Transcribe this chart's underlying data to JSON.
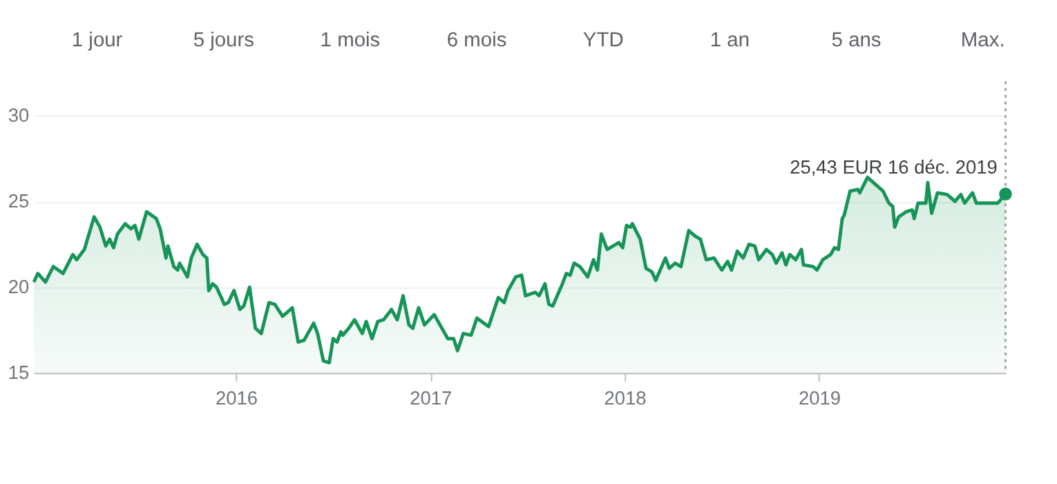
{
  "chart_data": {
    "type": "area",
    "x": [
      2014.96,
      2014.98,
      2015.02,
      2015.06,
      2015.11,
      2015.16,
      2015.18,
      2015.22,
      2015.27,
      2015.3,
      2015.33,
      2015.35,
      2015.37,
      2015.39,
      2015.43,
      2015.46,
      2015.48,
      2015.5,
      2015.54,
      2015.59,
      2015.61,
      2015.64,
      2015.65,
      2015.68,
      2015.7,
      2015.71,
      2015.75,
      2015.77,
      2015.8,
      2015.83,
      2015.85,
      2015.86,
      2015.88,
      2015.9,
      2015.94,
      2015.96,
      2015.99,
      2016.02,
      2016.04,
      2016.07,
      2016.1,
      2016.13,
      2016.17,
      2016.2,
      2016.24,
      2016.29,
      2016.32,
      2016.35,
      2016.4,
      2016.42,
      2016.45,
      2016.48,
      2016.5,
      2016.52,
      2016.54,
      2016.55,
      2016.58,
      2016.61,
      2016.65,
      2016.67,
      2016.7,
      2016.73,
      2016.76,
      2016.8,
      2016.83,
      2016.86,
      2016.89,
      2016.91,
      2016.94,
      2016.97,
      2017.02,
      2017.05,
      2017.09,
      2017.12,
      2017.14,
      2017.17,
      2017.21,
      2017.24,
      2017.3,
      2017.35,
      2017.38,
      2017.4,
      2017.44,
      2017.47,
      2017.49,
      2017.54,
      2017.56,
      2017.59,
      2017.61,
      2017.63,
      2017.68,
      2017.7,
      2017.72,
      2017.74,
      2017.77,
      2017.81,
      2017.84,
      2017.86,
      2017.88,
      2017.91,
      2017.97,
      2017.99,
      2018.01,
      2018.03,
      2018.04,
      2018.08,
      2018.11,
      2018.14,
      2018.16,
      2018.21,
      2018.23,
      2018.26,
      2018.29,
      2018.33,
      2018.36,
      2018.39,
      2018.42,
      2018.46,
      2018.5,
      2018.53,
      2018.55,
      2018.58,
      2018.61,
      2018.64,
      2018.67,
      2018.69,
      2018.73,
      2018.76,
      2018.78,
      2018.81,
      2018.83,
      2018.85,
      2018.88,
      2018.91,
      2018.92,
      2018.97,
      2018.99,
      2019.02,
      2019.06,
      2019.08,
      2019.1,
      2019.12,
      2019.13,
      2019.16,
      2019.2,
      2019.21,
      2019.25,
      2019.28,
      2019.31,
      2019.33,
      2019.36,
      2019.38,
      2019.39,
      2019.41,
      2019.45,
      2019.48,
      2019.49,
      2019.51,
      2019.55,
      2019.56,
      2019.58,
      2019.61,
      2019.66,
      2019.7,
      2019.73,
      2019.75,
      2019.79,
      2019.81,
      2019.84,
      2019.88,
      2019.92,
      2019.96
    ],
    "series": [
      {
        "color": "#179457",
        "values": [
          20.3,
          20.8,
          20.3,
          21.2,
          20.8,
          21.9,
          21.6,
          22.2,
          24.1,
          23.5,
          22.4,
          22.8,
          22.3,
          23.1,
          23.7,
          23.4,
          23.6,
          22.8,
          24.4,
          24.0,
          23.4,
          21.7,
          22.4,
          21.2,
          21.0,
          21.4,
          20.6,
          21.7,
          22.5,
          21.9,
          21.7,
          19.8,
          20.2,
          20.0,
          19.0,
          19.1,
          19.8,
          18.7,
          18.9,
          20.0,
          17.6,
          17.3,
          19.1,
          19.0,
          18.3,
          18.8,
          16.8,
          16.9,
          17.9,
          17.3,
          15.7,
          15.6,
          17.0,
          16.8,
          17.4,
          17.2,
          17.6,
          18.1,
          17.3,
          18.0,
          17.0,
          18.0,
          18.1,
          18.7,
          18.1,
          19.5,
          17.8,
          17.6,
          18.8,
          17.8,
          18.4,
          17.8,
          17.0,
          17.0,
          16.3,
          17.3,
          17.2,
          18.2,
          17.7,
          19.4,
          19.1,
          19.8,
          20.6,
          20.7,
          19.5,
          19.7,
          19.5,
          20.2,
          19.0,
          18.9,
          20.2,
          20.8,
          20.7,
          21.4,
          21.2,
          20.6,
          21.6,
          21.0,
          23.1,
          22.2,
          22.6,
          22.3,
          23.6,
          23.5,
          23.7,
          22.8,
          21.1,
          20.9,
          20.4,
          21.7,
          21.1,
          21.4,
          21.2,
          23.3,
          23.0,
          22.8,
          21.6,
          21.7,
          21.0,
          21.5,
          21.0,
          22.1,
          21.7,
          22.5,
          22.4,
          21.6,
          22.2,
          21.9,
          21.4,
          22.0,
          21.3,
          21.9,
          21.6,
          22.2,
          21.3,
          21.2,
          21.0,
          21.6,
          21.9,
          22.3,
          22.2,
          24.0,
          24.2,
          25.6,
          25.7,
          25.5,
          26.4,
          26.1,
          25.8,
          25.6,
          24.9,
          24.7,
          23.5,
          24.1,
          24.4,
          24.5,
          24.0,
          24.9,
          24.9,
          26.1,
          24.3,
          25.5,
          25.4,
          25.0,
          25.4,
          24.9,
          25.5,
          24.9,
          24.9,
          24.9,
          24.9,
          25.43
        ]
      }
    ],
    "xlim": [
      2014.96,
      2019.96
    ],
    "xticks": [
      2016,
      2017,
      2018,
      2019
    ],
    "ylim": [
      15,
      32
    ],
    "yticks": [
      15,
      20,
      25,
      30
    ],
    "grid": "y",
    "line_style": "solid",
    "ref_lines": [
      {
        "axis": "x",
        "value": 2019.96,
        "color": "#9e9e9e",
        "line_style": "dotted"
      }
    ],
    "annotations": [
      "1 jour",
      "5 jours",
      "1 mois",
      "6 mois",
      "YTD",
      "1 an",
      "5 ans",
      "Max.",
      {
        "text": "25,43 EUR  16 déc. 2019",
        "x": 2019.96,
        "y": 25.43
      }
    ]
  }
}
